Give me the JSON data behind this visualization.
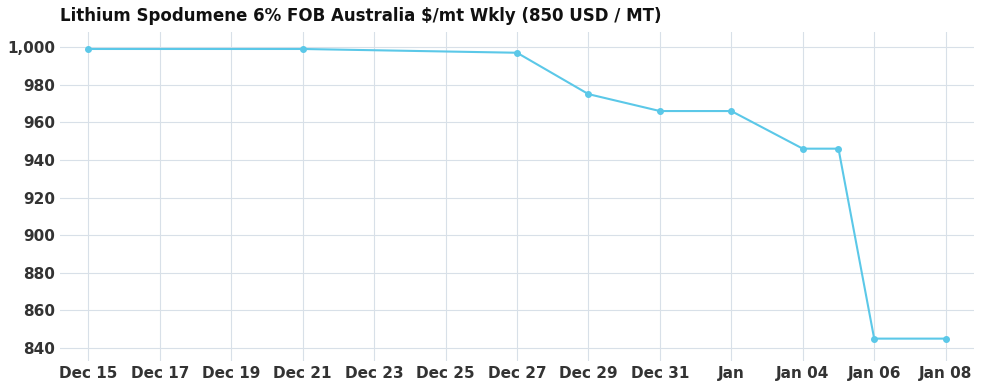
{
  "title": "Lithium Spodumene 6% FOB Australia $/mt Wkly (850 USD / MT)",
  "x_labels": [
    "Dec 15",
    "Dec 17",
    "Dec 19",
    "Dec 21",
    "Dec 23",
    "Dec 25",
    "Dec 27",
    "Dec 29",
    "Dec 31",
    "Jan",
    "Jan 04",
    "Jan 06",
    "Jan 08"
  ],
  "x_indices": [
    0,
    1,
    2,
    3,
    4,
    5,
    6,
    7,
    8,
    9,
    10,
    11,
    12
  ],
  "data_x": [
    0,
    3,
    6,
    7,
    8,
    9,
    10,
    10.5,
    11,
    12
  ],
  "data_y": [
    999,
    999,
    997,
    975,
    966,
    966,
    946,
    946,
    845,
    845
  ],
  "line_color": "#5bc8e8",
  "marker_color": "#5bc8e8",
  "background_color": "#ffffff",
  "grid_color": "#d8e0e8",
  "ylim": [
    833,
    1008
  ],
  "yticks": [
    840,
    860,
    880,
    900,
    920,
    940,
    960,
    980,
    1000
  ],
  "title_fontsize": 12,
  "tick_fontsize": 11,
  "tick_color": "#333333",
  "title_color": "#111111"
}
